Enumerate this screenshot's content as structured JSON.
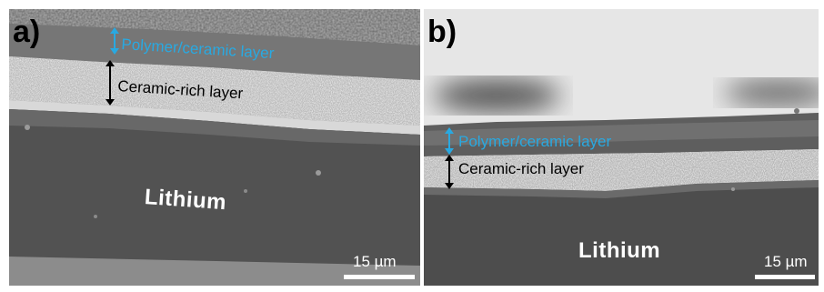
{
  "panels": [
    {
      "label": "a)",
      "layer_top": "Polymer/ceramic layer",
      "layer_bottom": "Ceramic-rich layer",
      "substrate": "Lithium",
      "scale_bar": "15 µm"
    },
    {
      "label": "b)",
      "layer_top": "Polymer/ceramic layer",
      "layer_bottom": "Ceramic-rich layer",
      "substrate": "Lithium",
      "scale_bar": "15 µm"
    }
  ],
  "colors": {
    "annotation_blue": "#29a9e1",
    "annotation_black": "#000000",
    "scale_white": "#ffffff"
  }
}
